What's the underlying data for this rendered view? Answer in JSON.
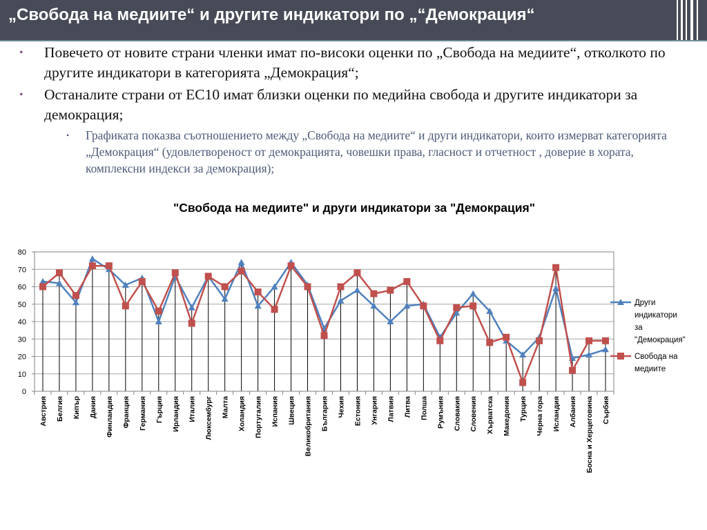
{
  "slide": {
    "title": "„Свобода на медиите“ и другите индикатори по „“Демокрация“"
  },
  "bullets": [
    {
      "text": "Повечето от новите страни членки имат по-високи оценки по „Свобода на медиите“, отколкото по другите индикатори в категорията „Демокрация“;"
    },
    {
      "text": "Останалите страни от ЕС10 имат близки оценки по медийна свобода и другите индикатори за демокрация;"
    }
  ],
  "sub_bullet": {
    "text": "Графиката показва съотношението между „Свобода на медиите“ и други индикатори, които измерват категорията „Демокрация“ (удовлетвореност от демокрацията, човешки права, гласност и отчетност , доверие в хората, комплексни индекси за демокрация);"
  },
  "colors": {
    "title_bar": "#474b57",
    "series_1": "#4f81bd",
    "series_2": "#c0504d",
    "bullet_marker": "#8b5a8e",
    "sub_bullet_text": "#4c5a78"
  },
  "chart_data": {
    "type": "line",
    "title": "\"Свобода на медиите\" и други индикатори за \"Демокрация\"",
    "xlabel": "",
    "ylabel": "",
    "ylim": [
      0,
      80
    ],
    "yticks": [
      0,
      10,
      20,
      30,
      40,
      50,
      60,
      70,
      80
    ],
    "grid": true,
    "legend_position": "right",
    "categories": [
      "Австрия",
      "Белгия",
      "Кипър",
      "Дания",
      "Финландия",
      "Франция",
      "Германия",
      "Гърция",
      "Ирландия",
      "Италия",
      "Люксембург",
      "Малта",
      "Холандия",
      "Португалия",
      "Испания",
      "Швеция",
      "Великобритания",
      "България",
      "Чехия",
      "Естония",
      "Унгария",
      "Латвия",
      "Литва",
      "Полша",
      "Румъния",
      "Словакия",
      "Словения",
      "Хърватска",
      "Македония",
      "Турция",
      "Черна гора",
      "Исландия",
      "Албания",
      "Босна и Херцеговина",
      "Сърбия"
    ],
    "series": [
      {
        "name": "Други индикатори за \"Демокрация\"",
        "marker": "triangle",
        "color": "#4f81bd",
        "values": [
          63,
          62,
          51,
          76,
          70,
          61,
          65,
          40,
          66,
          48,
          66,
          53,
          74,
          49,
          60,
          74,
          61,
          36,
          52,
          58,
          49,
          40,
          49,
          50,
          31,
          45,
          56,
          46,
          29,
          21,
          31,
          59,
          19,
          21,
          24
        ]
      },
      {
        "name": "Свобода на медиите",
        "marker": "square",
        "color": "#c0504d",
        "values": [
          60,
          68,
          55,
          72,
          72,
          49,
          63,
          46,
          68,
          39,
          66,
          60,
          69,
          57,
          47,
          72,
          60,
          32,
          60,
          68,
          56,
          58,
          63,
          49,
          29,
          48,
          49,
          28,
          31,
          5,
          29,
          71,
          12,
          29,
          29
        ]
      }
    ]
  }
}
